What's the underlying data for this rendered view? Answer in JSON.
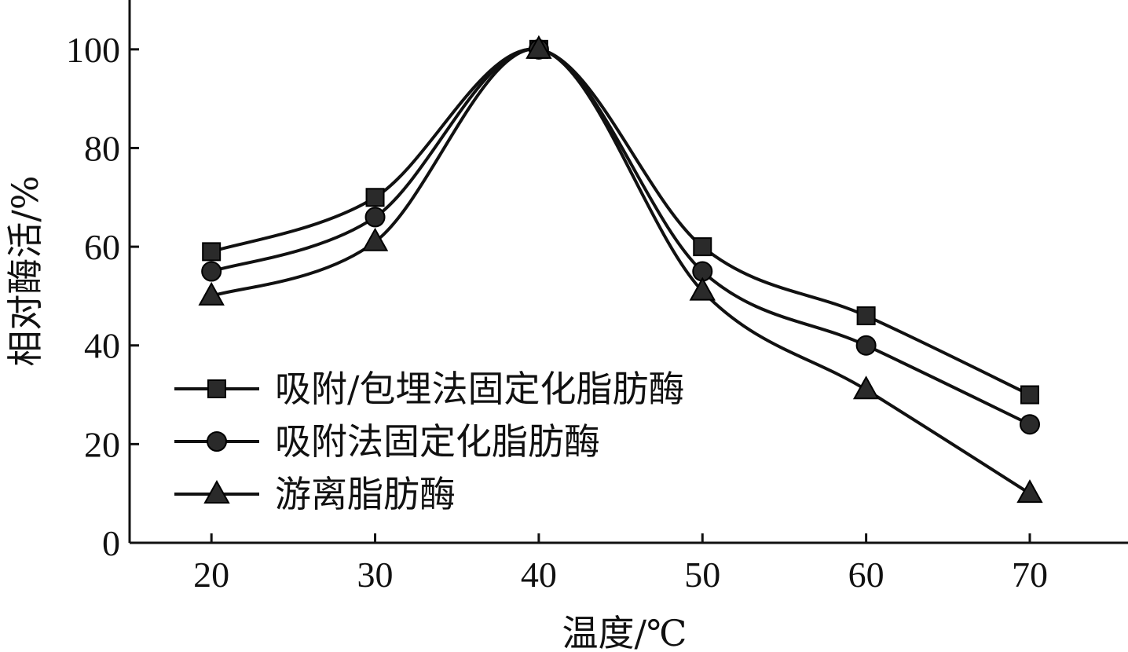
{
  "chart_data": {
    "type": "line",
    "title": "",
    "xlabel": "温度/℃",
    "ylabel": "相对酶活/%",
    "x": [
      20,
      30,
      40,
      50,
      60,
      70
    ],
    "x_tick_labels": [
      "20",
      "30",
      "40",
      "50",
      "60",
      "70"
    ],
    "y_tick_labels": [
      "0",
      "20",
      "40",
      "60",
      "80",
      "100"
    ],
    "xlim": [
      15,
      76
    ],
    "ylim": [
      0,
      110
    ],
    "grid": false,
    "legend_position": "lower-left",
    "series": [
      {
        "name": "吸附/包埋法固定化脂肪酶",
        "marker": "square",
        "values": [
          59,
          70,
          100,
          60,
          46,
          30
        ]
      },
      {
        "name": "吸附法固定化脂肪酶",
        "marker": "circle",
        "values": [
          55,
          66,
          100,
          55,
          40,
          24
        ]
      },
      {
        "name": "游离脂肪酶",
        "marker": "triangle",
        "values": [
          50,
          61,
          100,
          51,
          31,
          10
        ]
      }
    ],
    "colors": {
      "line": "#111111",
      "marker_fill": "#2a2a2a"
    }
  }
}
